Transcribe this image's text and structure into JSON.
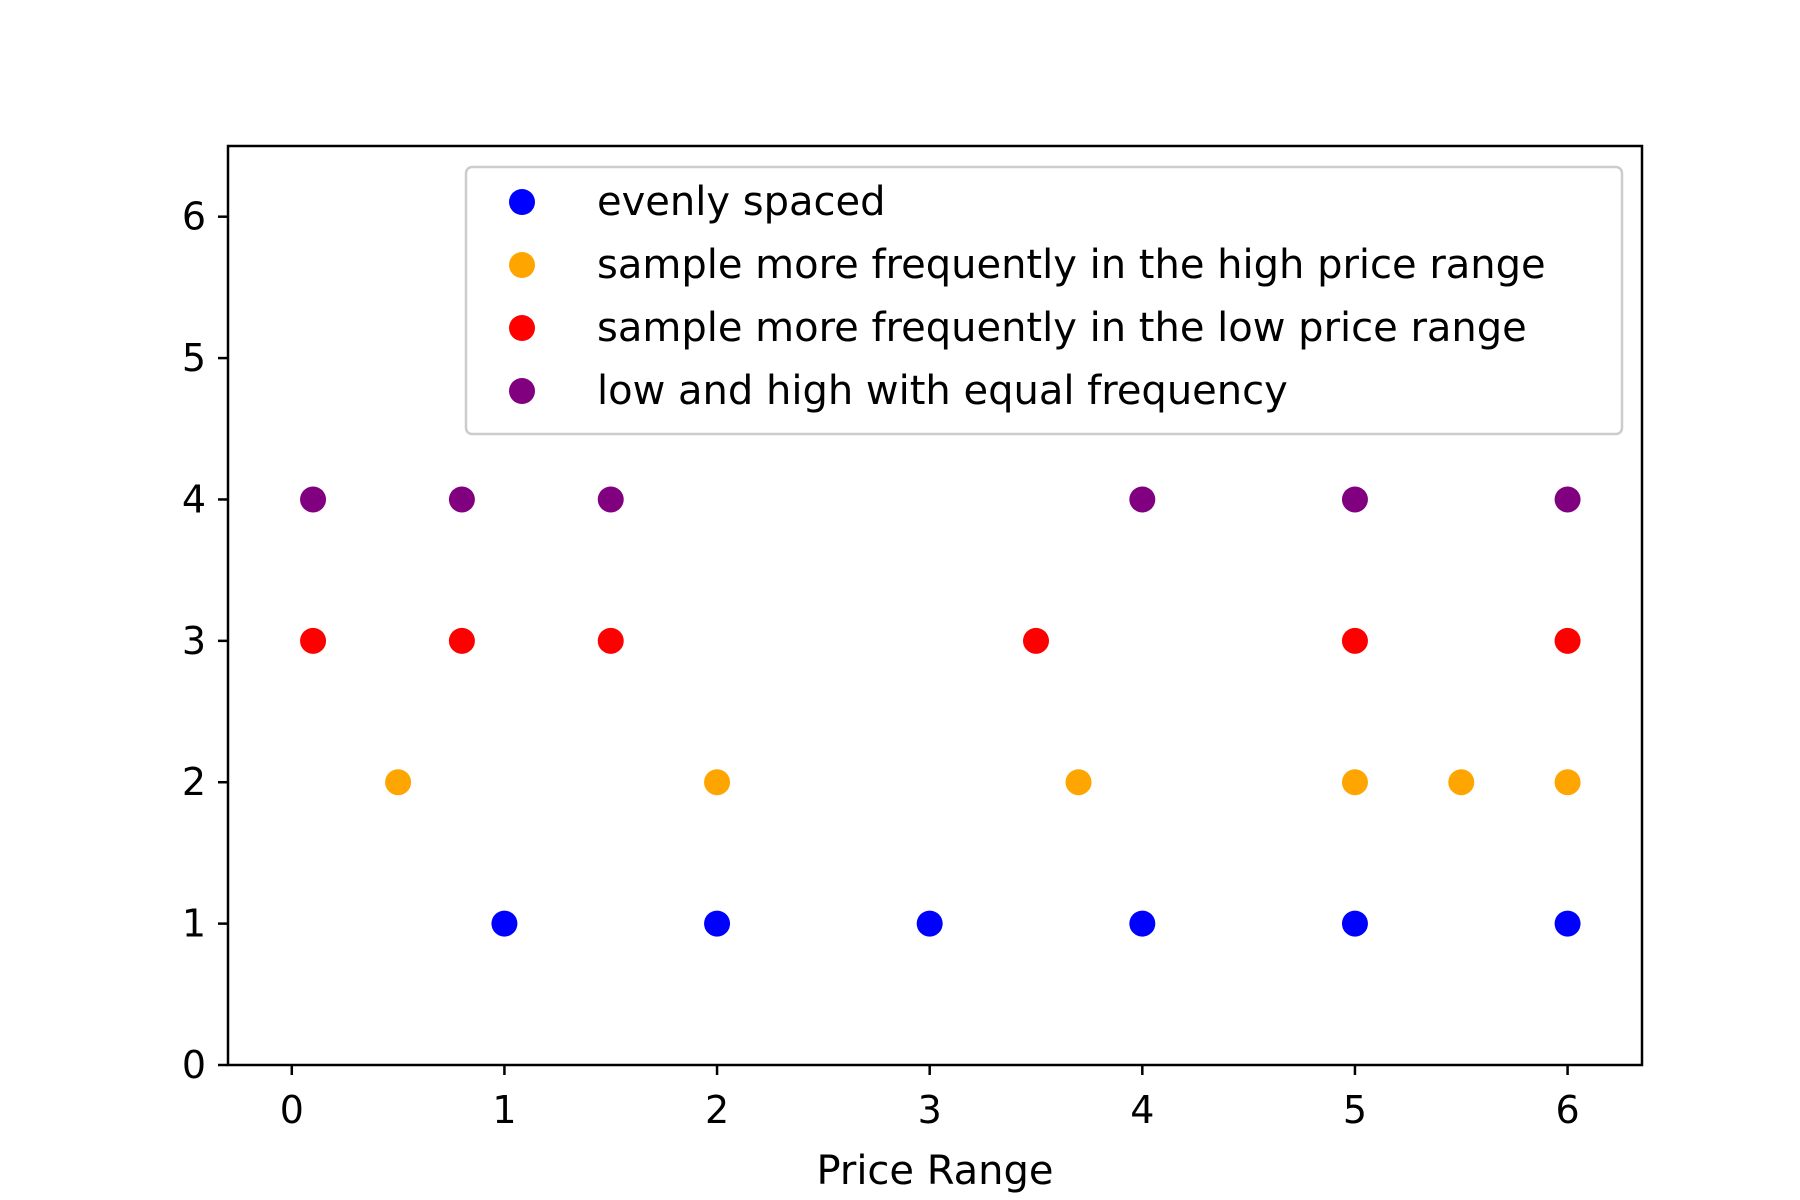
{
  "chart_data": {
    "type": "scatter",
    "title": "",
    "xlabel": "Price Range",
    "ylabel": "",
    "xlim": [
      -0.3,
      6.35
    ],
    "ylim": [
      0,
      6.5
    ],
    "xticks": [
      "0",
      "1",
      "2",
      "3",
      "4",
      "5",
      "6"
    ],
    "yticks": [
      "0",
      "1",
      "2",
      "3",
      "4",
      "5",
      "6"
    ],
    "grid": false,
    "legend_position": "top-right",
    "series": [
      {
        "name": "evenly spaced",
        "color": "#0000ff",
        "x": [
          1,
          2,
          3,
          4,
          5,
          6
        ],
        "y": [
          1,
          1,
          1,
          1,
          1,
          1
        ]
      },
      {
        "name": "sample more frequently in the high price range",
        "color": "#ffa500",
        "x": [
          0.5,
          2,
          3.7,
          5,
          5.5,
          6
        ],
        "y": [
          2,
          2,
          2,
          2,
          2,
          2
        ]
      },
      {
        "name": "sample more frequently in the low price range",
        "color": "#ff0000",
        "x": [
          0.1,
          0.8,
          1.5,
          3.5,
          5,
          6
        ],
        "y": [
          3,
          3,
          3,
          3,
          3,
          3
        ]
      },
      {
        "name": "low and high with equal frequency",
        "color": "#800080",
        "x": [
          0.1,
          0.8,
          1.5,
          4,
          5,
          6
        ],
        "y": [
          4,
          4,
          4,
          4,
          4,
          4
        ]
      }
    ]
  }
}
